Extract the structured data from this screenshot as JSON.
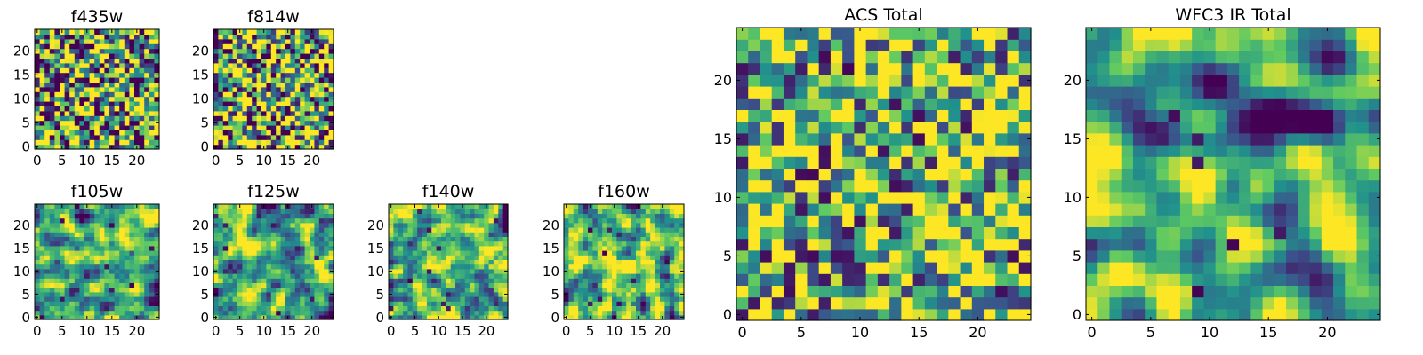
{
  "figure": {
    "colormap": "viridis",
    "colormap_stops": [
      "#440154",
      "#3b528b",
      "#21918c",
      "#5ec962",
      "#fde725"
    ]
  },
  "chart_data": [
    {
      "type": "heatmap",
      "title": "f435w",
      "grid": [
        25,
        25
      ],
      "xlim": [
        -0.5,
        24.5
      ],
      "ylim": [
        -0.5,
        24.5
      ],
      "xticks": [
        0,
        5,
        10,
        15,
        20
      ],
      "yticks": [
        0,
        5,
        10,
        15,
        20
      ],
      "pattern": "fine_noise",
      "seed": 11,
      "values_normalized_range": [
        0,
        1
      ]
    },
    {
      "type": "heatmap",
      "title": "f814w",
      "grid": [
        25,
        25
      ],
      "xlim": [
        -0.5,
        24.5
      ],
      "ylim": [
        -0.5,
        24.5
      ],
      "xticks": [
        0,
        5,
        10,
        15,
        20
      ],
      "yticks": [
        0,
        5,
        10,
        15,
        20
      ],
      "pattern": "fine_noise",
      "seed": 23,
      "values_normalized_range": [
        0,
        1
      ]
    },
    {
      "type": "heatmap",
      "title": "f105w",
      "grid": [
        25,
        25
      ],
      "xlim": [
        -0.5,
        24.5
      ],
      "ylim": [
        -0.5,
        24.5
      ],
      "xticks": [
        0,
        5,
        10,
        15,
        20
      ],
      "yticks": [
        0,
        5,
        10,
        15,
        20
      ],
      "pattern": "blotchy",
      "seed": 37,
      "values_normalized_range": [
        0,
        1
      ]
    },
    {
      "type": "heatmap",
      "title": "f125w",
      "grid": [
        25,
        25
      ],
      "xlim": [
        -0.5,
        24.5
      ],
      "ylim": [
        -0.5,
        24.5
      ],
      "xticks": [
        0,
        5,
        10,
        15,
        20
      ],
      "yticks": [
        0,
        5,
        10,
        15,
        20
      ],
      "pattern": "blotchy",
      "seed": 41,
      "values_normalized_range": [
        0,
        1
      ]
    },
    {
      "type": "heatmap",
      "title": "f140w",
      "grid": [
        25,
        25
      ],
      "xlim": [
        -0.5,
        24.5
      ],
      "ylim": [
        -0.5,
        24.5
      ],
      "xticks": [
        0,
        5,
        10,
        15,
        20
      ],
      "yticks": [
        0,
        5,
        10,
        15,
        20
      ],
      "pattern": "blotchy",
      "seed": 53,
      "values_normalized_range": [
        0,
        1
      ]
    },
    {
      "type": "heatmap",
      "title": "f160w",
      "grid": [
        25,
        25
      ],
      "xlim": [
        -0.5,
        24.5
      ],
      "ylim": [
        -0.5,
        24.5
      ],
      "xticks": [
        0,
        5,
        10,
        15,
        20
      ],
      "yticks": [
        0,
        5,
        10,
        15,
        20
      ],
      "pattern": "blotchy",
      "seed": 67,
      "values_normalized_range": [
        0,
        1
      ]
    },
    {
      "type": "heatmap",
      "title": "ACS Total",
      "grid": [
        25,
        25
      ],
      "xlim": [
        -0.5,
        24.5
      ],
      "ylim": [
        -0.5,
        24.5
      ],
      "xticks": [
        0,
        5,
        10,
        15,
        20
      ],
      "yticks": [
        0,
        5,
        10,
        15,
        20
      ],
      "pattern": "bright_noise",
      "seed": 79,
      "values_normalized_range": [
        0,
        1
      ]
    },
    {
      "type": "heatmap",
      "title": "WFC3 IR Total",
      "grid": [
        25,
        25
      ],
      "xlim": [
        -0.5,
        24.5
      ],
      "ylim": [
        -0.5,
        24.5
      ],
      "xticks": [
        0,
        5,
        10,
        15,
        20
      ],
      "yticks": [
        0,
        5,
        10,
        15,
        20
      ],
      "pattern": "smooth",
      "seed": 97,
      "values_normalized_range": [
        0,
        1
      ]
    }
  ]
}
